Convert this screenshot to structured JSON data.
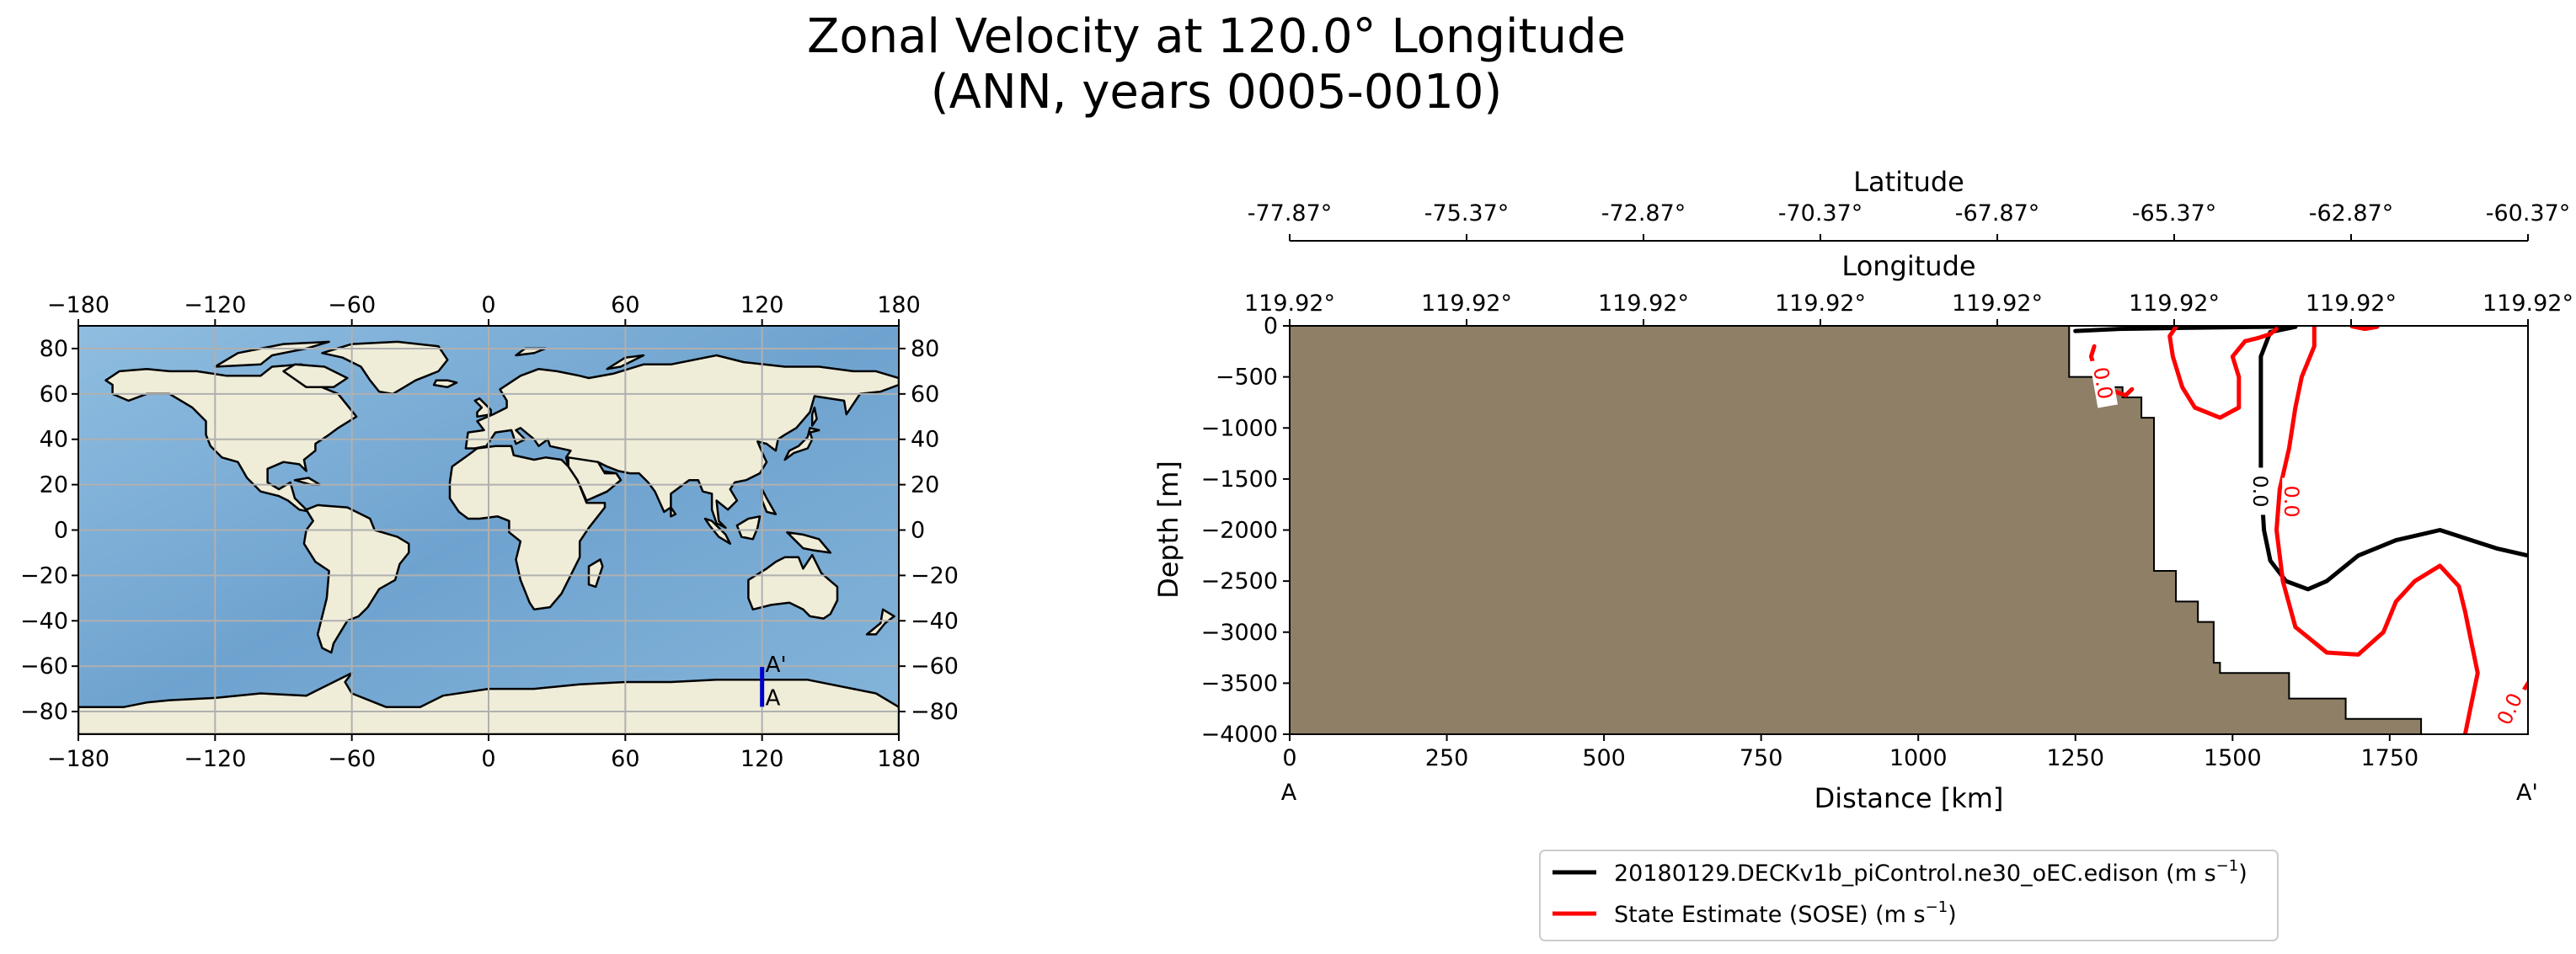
{
  "figure": {
    "title_line1": "Zonal Velocity at 120.0° Longitude",
    "title_line2": "(ANN, years 0005-0010)"
  },
  "colors": {
    "ocean": "#7fb0d8",
    "ocean_deep": "#6a9cc8",
    "land": "#efecd8",
    "coast": "#000000",
    "section_line": "#0000cc",
    "seafloor": "#8e7f66",
    "model_contour": "#000000",
    "obs_contour": "#ff0000",
    "grid": "#b0b0b0"
  },
  "chart_data": [
    {
      "type": "map",
      "name": "section location map",
      "lon_ticks": [
        -180,
        -120,
        -60,
        0,
        60,
        120,
        180
      ],
      "lat_ticks": [
        80,
        60,
        40,
        20,
        0,
        -20,
        -40,
        -60,
        -80
      ],
      "lon_range": [
        -180,
        180
      ],
      "lat_range": [
        -90,
        90
      ],
      "grid": true,
      "section": {
        "lon": 120,
        "lat_start": -77.87,
        "lat_end": -60.37,
        "start_label": "A",
        "end_label": "A'"
      }
    },
    {
      "type": "contour",
      "name": "zonal velocity transect",
      "xlabel": "Distance [km]",
      "ylabel": "Depth [m]",
      "x_ticks": [
        0,
        250,
        500,
        750,
        1000,
        1250,
        1500,
        1750
      ],
      "x_range": [
        0,
        1970
      ],
      "y_ticks": [
        0,
        -500,
        -1000,
        -1500,
        -2000,
        -2500,
        -3000,
        -3500,
        -4000
      ],
      "y_range": [
        -4000,
        0
      ],
      "endpoint_labels": {
        "start": "A",
        "end": "A'"
      },
      "top_axes": [
        {
          "label": "Latitude",
          "ticks": [
            "-77.87°",
            "-75.37°",
            "-72.87°",
            "-70.37°",
            "-67.87°",
            "-65.37°",
            "-62.87°",
            "-60.37°"
          ]
        },
        {
          "label": "Longitude",
          "ticks": [
            "119.92°",
            "119.92°",
            "119.92°",
            "119.92°",
            "119.92°",
            "119.92°",
            "119.92°",
            "119.92°"
          ]
        }
      ],
      "bathymetry": [
        [
          0,
          0
        ],
        [
          1240,
          0
        ],
        [
          1240,
          -500
        ],
        [
          1285,
          -500
        ],
        [
          1285,
          -600
        ],
        [
          1325,
          -600
        ],
        [
          1325,
          -700
        ],
        [
          1355,
          -700
        ],
        [
          1355,
          -900
        ],
        [
          1375,
          -900
        ],
        [
          1375,
          -2400
        ],
        [
          1410,
          -2400
        ],
        [
          1410,
          -2700
        ],
        [
          1445,
          -2700
        ],
        [
          1445,
          -2900
        ],
        [
          1470,
          -2900
        ],
        [
          1470,
          -3300
        ],
        [
          1480,
          -3300
        ],
        [
          1480,
          -3400
        ],
        [
          1590,
          -3400
        ],
        [
          1590,
          -3650
        ],
        [
          1680,
          -3650
        ],
        [
          1680,
          -3850
        ],
        [
          1800,
          -3850
        ],
        [
          1800,
          -4000
        ]
      ],
      "series": [
        {
          "name": "20180129.DECKv1b_piControl.ne30_oEC.edison (m s",
          "unit_sup": "−1",
          "name_suffix": ")",
          "color": "#000000",
          "contour_level": 0.0,
          "contour_label": "0.0",
          "contours": [
            [
              [
                1250,
                -50
              ],
              [
                1320,
                -30
              ],
              [
                1420,
                -20
              ],
              [
                1540,
                -10
              ],
              [
                1600,
                -5
              ]
            ],
            [
              [
                1600,
                -10
              ],
              [
                1560,
                -60
              ],
              [
                1545,
                -300
              ],
              [
                1545,
                -800
              ],
              [
                1545,
                -1500
              ],
              [
                1550,
                -2000
              ],
              [
                1560,
                -2300
              ],
              [
                1585,
                -2500
              ],
              [
                1620,
                -2580
              ],
              [
                1650,
                -2500
              ],
              [
                1700,
                -2250
              ],
              [
                1760,
                -2100
              ],
              [
                1830,
                -2000
              ],
              [
                1880,
                -2100
              ],
              [
                1920,
                -2180
              ],
              [
                1970,
                -2250
              ]
            ]
          ]
        },
        {
          "name": "State Estimate (SOSE) (m s",
          "unit_sup": "−1",
          "name_suffix": ")",
          "color": "#ff0000",
          "contour_level": 0.0,
          "contour_label": "0.0",
          "contours": [
            [
              [
                1280,
                -200
              ],
              [
                1275,
                -300
              ],
              [
                1280,
                -400
              ],
              [
                1295,
                -450
              ],
              [
                1300,
                -600
              ],
              [
                1315,
                -650
              ],
              [
                1330,
                -680
              ],
              [
                1340,
                -620
              ]
            ],
            [
              [
                1410,
                -10
              ],
              [
                1400,
                -100
              ],
              [
                1405,
                -300
              ],
              [
                1420,
                -600
              ],
              [
                1440,
                -800
              ],
              [
                1480,
                -900
              ],
              [
                1510,
                -800
              ],
              [
                1510,
                -500
              ],
              [
                1500,
                -300
              ],
              [
                1520,
                -150
              ],
              [
                1540,
                -120
              ],
              [
                1560,
                -80
              ],
              [
                1570,
                -30
              ]
            ],
            [
              [
                1630,
                -10
              ],
              [
                1630,
                -200
              ],
              [
                1610,
                -500
              ],
              [
                1600,
                -800
              ],
              [
                1590,
                -1200
              ],
              [
                1575,
                -1600
              ],
              [
                1570,
                -2000
              ],
              [
                1580,
                -2500
              ],
              [
                1600,
                -2950
              ],
              [
                1650,
                -3200
              ],
              [
                1700,
                -3220
              ],
              [
                1740,
                -3000
              ],
              [
                1760,
                -2700
              ],
              [
                1790,
                -2500
              ],
              [
                1830,
                -2350
              ],
              [
                1860,
                -2550
              ],
              [
                1870,
                -2800
              ],
              [
                1880,
                -3100
              ],
              [
                1890,
                -3400
              ],
              [
                1880,
                -3700
              ],
              [
                1870,
                -4000
              ]
            ],
            [
              [
                1690,
                -5
              ],
              [
                1710,
                -30
              ],
              [
                1730,
                -10
              ]
            ],
            [
              [
                1940,
                -3800
              ],
              [
                1970,
                -3500
              ]
            ]
          ]
        }
      ],
      "legend": {
        "placement": "bottom-center"
      }
    }
  ]
}
